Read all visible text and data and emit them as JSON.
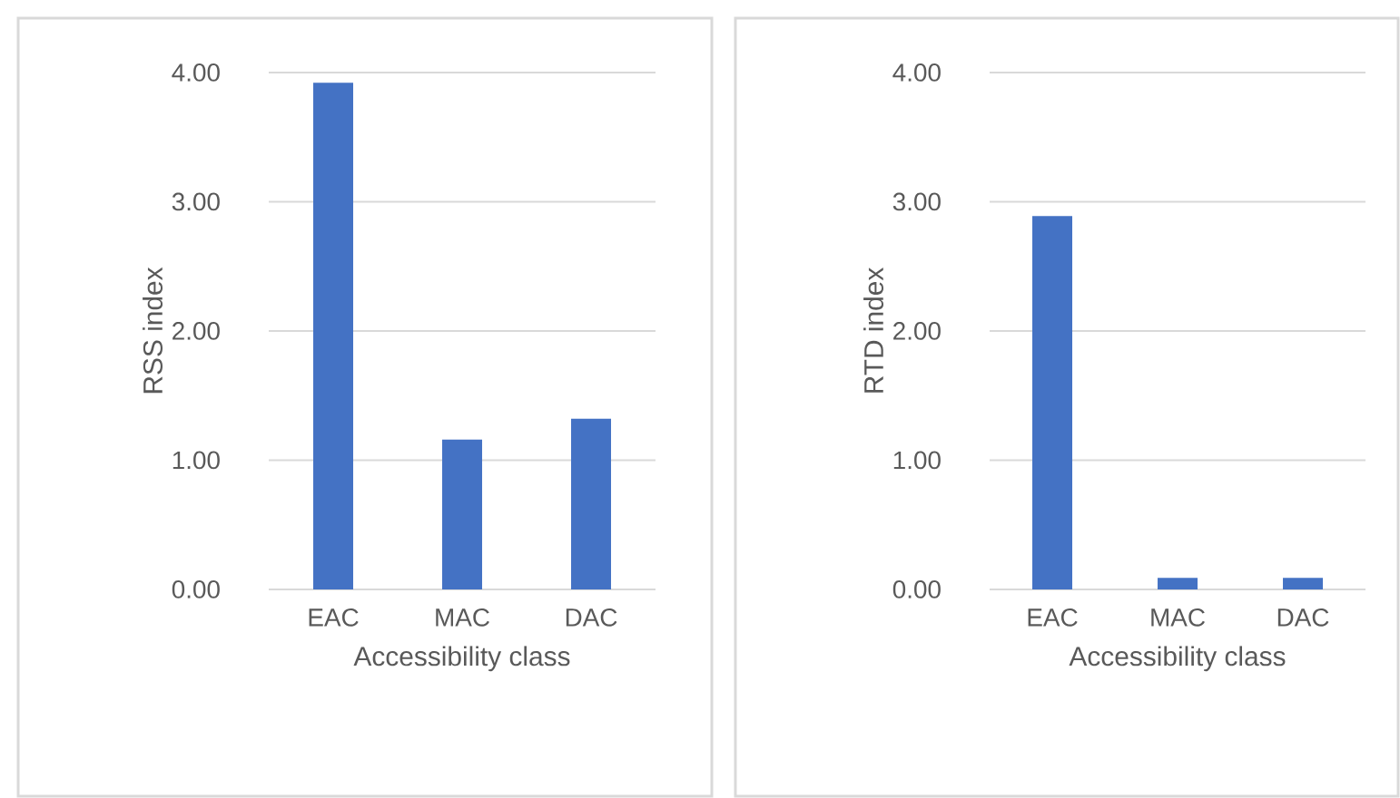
{
  "chart_data": [
    {
      "type": "bar",
      "categories": [
        "EAC",
        "MAC",
        "DAC"
      ],
      "values": [
        3.92,
        1.16,
        1.32
      ],
      "color": "#4472c4",
      "xlabel": "Accessibility class",
      "ylabel": "RSS index",
      "ylim": [
        0,
        4
      ],
      "yticks": [
        {
          "value": 0,
          "label": "0.00"
        },
        {
          "value": 1,
          "label": "1.00"
        },
        {
          "value": 2,
          "label": "2.00"
        },
        {
          "value": 3,
          "label": "3.00"
        },
        {
          "value": 4,
          "label": "4.00"
        }
      ],
      "grid": "y"
    },
    {
      "type": "bar",
      "categories": [
        "EAC",
        "MAC",
        "DAC"
      ],
      "values": [
        2.89,
        0.09,
        0.09
      ],
      "color": "#4472c4",
      "xlabel": "Accessibility class",
      "ylabel": "RTD index",
      "ylim": [
        0,
        4
      ],
      "yticks": [
        {
          "value": 0,
          "label": "0.00"
        },
        {
          "value": 1,
          "label": "1.00"
        },
        {
          "value": 2,
          "label": "2.00"
        },
        {
          "value": 3,
          "label": "3.00"
        },
        {
          "value": 4,
          "label": "4.00"
        }
      ],
      "grid": "y"
    }
  ]
}
